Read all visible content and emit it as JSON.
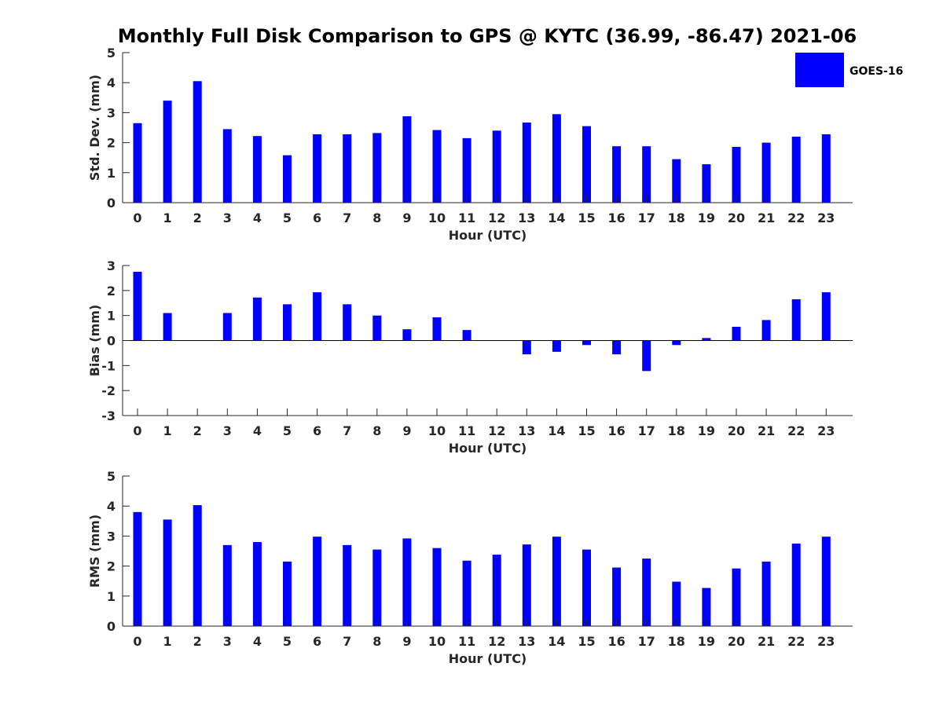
{
  "title": "Monthly Full Disk Comparison to GPS @ KYTC (36.99, -86.47) 2021-06",
  "legend": {
    "label": "GOES-16",
    "placement": "top-right"
  },
  "colors": {
    "bar": "#0000ff",
    "axis": "#262626"
  },
  "chart_data": [
    {
      "type": "bar",
      "title": "Monthly Full Disk Comparison to GPS @ KYTC (36.99, -86.47) 2021-06",
      "xlabel": "Hour (UTC)",
      "ylabel": "Std. Dev. (mm)",
      "ylim": [
        0,
        5
      ],
      "yticks": [
        0,
        1,
        2,
        3,
        4,
        5
      ],
      "categories": [
        "0",
        "1",
        "2",
        "3",
        "4",
        "5",
        "6",
        "7",
        "8",
        "9",
        "10",
        "11",
        "12",
        "13",
        "14",
        "15",
        "16",
        "17",
        "18",
        "19",
        "20",
        "21",
        "22",
        "23"
      ],
      "series": [
        {
          "name": "GOES-16",
          "values": [
            2.65,
            3.4,
            4.05,
            2.45,
            2.22,
            1.58,
            2.28,
            2.28,
            2.32,
            2.88,
            2.42,
            2.15,
            2.4,
            2.67,
            2.95,
            2.55,
            1.88,
            1.88,
            1.45,
            1.28,
            1.86,
            2.0,
            2.2,
            2.28
          ]
        }
      ],
      "grid": false
    },
    {
      "type": "bar",
      "xlabel": "Hour (UTC)",
      "ylabel": "Bias (mm)",
      "ylim": [
        -3,
        3
      ],
      "yticks": [
        -3,
        -2,
        -1,
        0,
        1,
        2,
        3
      ],
      "categories": [
        "0",
        "1",
        "2",
        "3",
        "4",
        "5",
        "6",
        "7",
        "8",
        "9",
        "10",
        "11",
        "12",
        "13",
        "14",
        "15",
        "16",
        "17",
        "18",
        "19",
        "20",
        "21",
        "22",
        "23"
      ],
      "series": [
        {
          "name": "GOES-16",
          "values": [
            2.75,
            1.1,
            0,
            1.1,
            1.72,
            1.45,
            1.93,
            1.45,
            1.0,
            0.45,
            0.93,
            0.42,
            0,
            -0.55,
            -0.45,
            -0.18,
            -0.55,
            -1.22,
            -0.18,
            0.1,
            0.55,
            0.82,
            1.65,
            1.93
          ]
        }
      ],
      "grid": false
    },
    {
      "type": "bar",
      "xlabel": "Hour (UTC)",
      "ylabel": "RMS (mm)",
      "ylim": [
        0,
        5
      ],
      "yticks": [
        0,
        1,
        2,
        3,
        4,
        5
      ],
      "categories": [
        "0",
        "1",
        "2",
        "3",
        "4",
        "5",
        "6",
        "7",
        "8",
        "9",
        "10",
        "11",
        "12",
        "13",
        "14",
        "15",
        "16",
        "17",
        "18",
        "19",
        "20",
        "21",
        "22",
        "23"
      ],
      "series": [
        {
          "name": "GOES-16",
          "values": [
            3.8,
            3.55,
            4.03,
            2.7,
            2.8,
            2.15,
            2.98,
            2.7,
            2.55,
            2.92,
            2.6,
            2.18,
            2.38,
            2.72,
            2.98,
            2.55,
            1.95,
            2.25,
            1.48,
            1.27,
            1.92,
            2.15,
            2.75,
            2.98
          ]
        }
      ],
      "grid": false
    }
  ]
}
